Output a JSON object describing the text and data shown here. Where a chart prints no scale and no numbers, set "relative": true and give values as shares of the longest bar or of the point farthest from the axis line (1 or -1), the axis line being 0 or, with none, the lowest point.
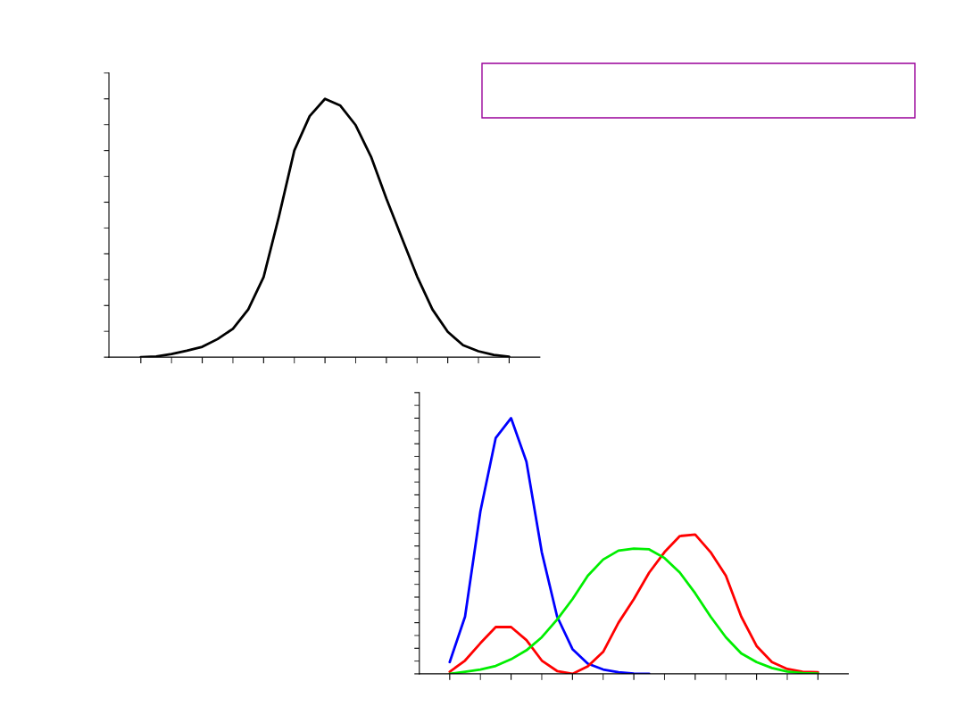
{
  "chart_data": [
    {
      "type": "line",
      "relative": true,
      "tick_labels": false,
      "categories": [
        null,
        null,
        null,
        null,
        null,
        null,
        null,
        null,
        null,
        null,
        null,
        null,
        null,
        null,
        null,
        null,
        null,
        null,
        null,
        null,
        null,
        null,
        null,
        null,
        null
      ],
      "series": [
        {
          "color": "#000000",
          "values": [
            0,
            0.003,
            0.012,
            0.025,
            0.04,
            0.07,
            0.11,
            0.185,
            0.31,
            0.545,
            0.8,
            0.933,
            1,
            0.974,
            0.898,
            0.776,
            0.614,
            0.463,
            0.313,
            0.185,
            0.098,
            0.046,
            0.023,
            0.009,
            0.002
          ]
        }
      ]
    },
    {
      "type": "line",
      "relative": true,
      "tick_labels": false,
      "categories": [
        null,
        null,
        null,
        null,
        null,
        null,
        null,
        null,
        null,
        null,
        null,
        null,
        null,
        null,
        null,
        null,
        null,
        null,
        null,
        null,
        null,
        null,
        null,
        null,
        null
      ],
      "series": [
        {
          "color": "#0000ff",
          "values": [
            0.046,
            0.224,
            0.636,
            0.923,
            1,
            0.83,
            0.476,
            0.224,
            0.097,
            0.04,
            0.017,
            0.006,
            0.001,
            0,
            null,
            null,
            null,
            null,
            null,
            null,
            null,
            null,
            null,
            null,
            null
          ]
        },
        {
          "color": "#ff0000",
          "values": [
            0.008,
            0.052,
            0.12,
            0.183,
            0.183,
            0.132,
            0.052,
            0.011,
            0,
            0.029,
            0.086,
            0.2,
            0.292,
            0.396,
            0.476,
            0.539,
            0.545,
            0.476,
            0.384,
            0.224,
            0.109,
            0.046,
            0.019,
            0.008,
            0.006
          ]
        },
        {
          "color": "#00ee00",
          "values": [
            0,
            0.008,
            0.017,
            0.031,
            0.057,
            0.092,
            0.143,
            0.212,
            0.292,
            0.384,
            0.447,
            0.482,
            0.49,
            0.487,
            0.453,
            0.396,
            0.315,
            0.224,
            0.143,
            0.08,
            0.046,
            0.023,
            0.009,
            0.003,
            0.001
          ]
        }
      ]
    }
  ]
}
